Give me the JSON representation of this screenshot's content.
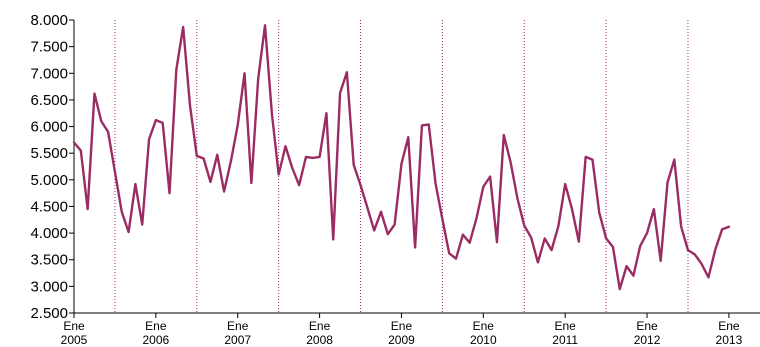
{
  "chart_data": {
    "type": "line",
    "title": "",
    "xlabel": "",
    "ylabel": "",
    "ylim": [
      2500,
      8000
    ],
    "y_ticks": [
      "8.000",
      "7.500",
      "7.000",
      "6.500",
      "6.000",
      "5.500",
      "5.000",
      "4.500",
      "4.000",
      "3.500",
      "3.000",
      "2.500"
    ],
    "y_tick_values": [
      8000,
      7500,
      7000,
      6500,
      6000,
      5500,
      5000,
      4500,
      4000,
      3500,
      3000,
      2500
    ],
    "x_ticks": [
      {
        "month": "Ene",
        "year": "2005"
      },
      {
        "month": "Ene",
        "year": "2006"
      },
      {
        "month": "Ene",
        "year": "2007"
      },
      {
        "month": "Ene",
        "year": "2008"
      },
      {
        "month": "Ene",
        "year": "2009"
      },
      {
        "month": "Ene",
        "year": "2010"
      },
      {
        "month": "Ene",
        "year": "2011"
      },
      {
        "month": "Ene",
        "year": "2012"
      },
      {
        "month": "Ene",
        "year": "2013"
      }
    ],
    "x_start": "2005-01",
    "grid": "dotted vertical lines at mid-year",
    "line_color": "#9b2c63",
    "series": [
      {
        "values": [
          5700,
          5550,
          4450,
          6620,
          6100,
          5900,
          5150,
          4400,
          4020,
          4920,
          4160,
          5760,
          6120,
          6070,
          4750,
          7070,
          7870,
          6400,
          5450,
          5400,
          4960,
          5470,
          4780,
          5350,
          6030,
          7000,
          4940,
          6900,
          7900,
          6250,
          5100,
          5630,
          5220,
          4900,
          5430,
          5410,
          5430,
          6250,
          3880,
          6630,
          7020,
          5280,
          4900,
          4480,
          4050,
          4400,
          3980,
          4160,
          5300,
          5800,
          3730,
          6020,
          6040,
          4930,
          4260,
          3620,
          3520,
          3970,
          3820,
          4280,
          4870,
          5060,
          3830,
          5840,
          5330,
          4650,
          4140,
          3920,
          3450,
          3900,
          3680,
          4130,
          4920,
          4450,
          3840,
          5430,
          5380,
          4380,
          3900,
          3740,
          2950,
          3380,
          3200,
          3760,
          4000,
          4450,
          3480,
          4950,
          5380,
          4120,
          3680,
          3600,
          3420,
          3170,
          3690,
          4070,
          4120
        ]
      }
    ]
  }
}
